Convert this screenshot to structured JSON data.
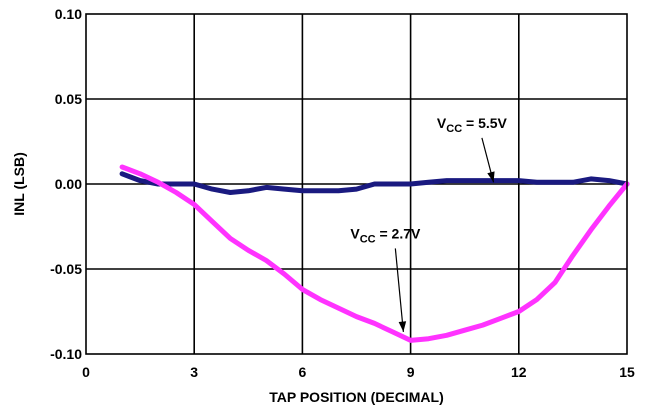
{
  "chart_data": {
    "type": "line",
    "xlabel": "TAP POSITION (DECIMAL)",
    "ylabel": "INL (LSB)",
    "xlim": [
      0,
      15
    ],
    "ylim": [
      -0.1,
      0.1
    ],
    "x_ticks": [
      "0",
      "3",
      "6",
      "9",
      "12",
      "15"
    ],
    "y_ticks": [
      "0.10",
      "0.05",
      "0.00",
      "-0.05",
      "-0.10"
    ],
    "grid": true,
    "series": [
      {
        "name": "VCC = 5.5V",
        "label_main": "V",
        "label_sub": "CC",
        "label_rest": " = 5.5V",
        "color": "#1a1a80",
        "x": [
          1,
          1.5,
          2,
          3,
          3.5,
          4,
          4.5,
          5,
          5.5,
          6,
          6.5,
          7,
          7.5,
          8,
          9,
          9.5,
          10,
          10.5,
          11,
          11.5,
          12,
          12.5,
          13,
          13.5,
          14,
          14.5,
          15
        ],
        "y": [
          0.006,
          0.002,
          0.0,
          0.0,
          -0.003,
          -0.005,
          -0.004,
          -0.002,
          -0.003,
          -0.004,
          -0.004,
          -0.004,
          -0.003,
          0.0,
          0.0,
          0.001,
          0.002,
          0.002,
          0.002,
          0.002,
          0.002,
          0.001,
          0.001,
          0.001,
          0.003,
          0.002,
          0.0
        ]
      },
      {
        "name": "VCC = 2.7V",
        "label_main": "V",
        "label_sub": "CC",
        "label_rest": " = 2.7V",
        "color": "#ff33ff",
        "x": [
          1,
          1.5,
          2,
          2.5,
          3,
          3.5,
          4,
          4.5,
          5,
          5.5,
          6,
          6.5,
          7,
          7.5,
          8,
          8.5,
          9,
          9.5,
          10,
          10.5,
          11,
          11.5,
          12,
          12.5,
          13,
          13.5,
          14,
          14.5,
          15
        ],
        "y": [
          0.01,
          0.006,
          0.001,
          -0.005,
          -0.012,
          -0.022,
          -0.032,
          -0.039,
          -0.045,
          -0.053,
          -0.062,
          -0.068,
          -0.073,
          -0.078,
          -0.082,
          -0.087,
          -0.092,
          -0.091,
          -0.089,
          -0.086,
          -0.083,
          -0.079,
          -0.075,
          -0.068,
          -0.058,
          -0.042,
          -0.027,
          -0.013,
          0.0
        ]
      }
    ],
    "annotations": [
      {
        "series": 0,
        "text_at": [
          10.7,
          0.033
        ],
        "arrow_to": [
          11.3,
          0.001
        ]
      },
      {
        "series": 1,
        "text_at": [
          8.3,
          -0.032
        ],
        "arrow_to": [
          8.8,
          -0.087
        ]
      }
    ]
  }
}
